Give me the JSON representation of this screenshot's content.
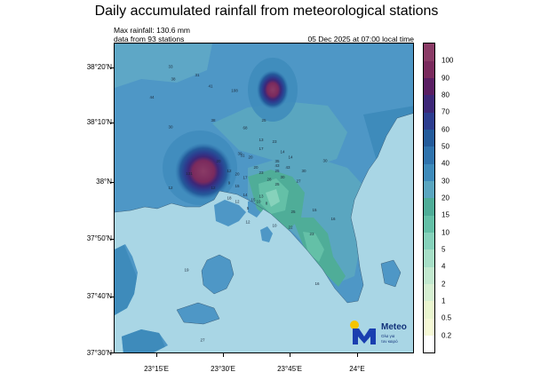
{
  "title": "Daily accumulated rainfall from meteorological stations",
  "max_rainfall": "Max rainfall: 130.6 mm",
  "station_count": "data from 93 stations",
  "timestamp": "05 Dec 2025 at 07:00 local time",
  "lat_labels": [
    "38°20'N",
    "38°10'N",
    "38°N",
    "37°50'N",
    "37°40'N",
    "37°30'N"
  ],
  "lon_labels": [
    "23°15'E",
    "23°30'E",
    "23°45'E",
    "24°E"
  ],
  "colorbar": {
    "levels": [
      "0.2",
      "0.5",
      "1",
      "2",
      "4",
      "5",
      "10",
      "15",
      "20",
      "30",
      "40",
      "50",
      "60",
      "70",
      "80",
      "90",
      "100"
    ],
    "colors": [
      "#ffffff",
      "#f6f9d6",
      "#eaf6cf",
      "#d6f0d2",
      "#c2e9cf",
      "#a7dfc7",
      "#86d2bb",
      "#64c0a7",
      "#4fad98",
      "#5aa6c0",
      "#3e8bbb",
      "#2f73ad",
      "#245b9b",
      "#2c3d8f",
      "#3d2778",
      "#5a1e63",
      "#7a2a5d",
      "#8a3b66"
    ]
  },
  "logo": {
    "brand": "Meteo",
    "tagline_1": "Ολα για",
    "tagline_2": "τον καιρό"
  },
  "colors": {
    "sea": "#a9d6e5",
    "land_base": "#4e97c6",
    "heavy": "#8a2b63"
  },
  "stations": [
    {
      "v": "33",
      "lon": 23.3,
      "lat": 38.335
    },
    {
      "v": "38",
      "lon": 23.31,
      "lat": 38.298
    },
    {
      "v": "44",
      "lon": 23.23,
      "lat": 38.245
    },
    {
      "v": "31",
      "lon": 23.4,
      "lat": 38.31
    },
    {
      "v": "41",
      "lon": 23.45,
      "lat": 38.277
    },
    {
      "v": "108",
      "lon": 23.54,
      "lat": 38.265
    },
    {
      "v": "30",
      "lon": 23.3,
      "lat": 38.158
    },
    {
      "v": "38",
      "lon": 23.46,
      "lat": 38.177
    },
    {
      "v": "68",
      "lon": 23.58,
      "lat": 38.156
    },
    {
      "v": "25",
      "lon": 23.65,
      "lat": 38.178
    },
    {
      "v": "131",
      "lon": 23.37,
      "lat": 38.022
    },
    {
      "v": "20",
      "lon": 23.48,
      "lat": 38.058
    },
    {
      "v": "12",
      "lon": 23.46,
      "lat": 37.98
    },
    {
      "v": "13",
      "lon": 23.64,
      "lat": 38.12
    },
    {
      "v": "23",
      "lon": 23.69,
      "lat": 38.115
    },
    {
      "v": "30",
      "lon": 23.56,
      "lat": 38.08
    },
    {
      "v": "31",
      "lon": 23.57,
      "lat": 38.075
    },
    {
      "v": "20",
      "lon": 23.6,
      "lat": 38.07
    },
    {
      "v": "14",
      "lon": 23.72,
      "lat": 38.085
    },
    {
      "v": "17",
      "lon": 23.64,
      "lat": 38.095
    },
    {
      "v": "14",
      "lon": 23.75,
      "lat": 38.07
    },
    {
      "v": "30",
      "lon": 23.88,
      "lat": 38.06
    },
    {
      "v": "35",
      "lon": 23.7,
      "lat": 38.058
    },
    {
      "v": "43",
      "lon": 23.7,
      "lat": 38.045
    },
    {
      "v": "43",
      "lon": 23.74,
      "lat": 38.04
    },
    {
      "v": "25",
      "lon": 23.7,
      "lat": 38.03
    },
    {
      "v": "20",
      "lon": 23.62,
      "lat": 38.04
    },
    {
      "v": "12",
      "lon": 23.52,
      "lat": 38.03
    },
    {
      "v": "20",
      "lon": 23.55,
      "lat": 38.02
    },
    {
      "v": "17",
      "lon": 23.58,
      "lat": 38.01
    },
    {
      "v": "23",
      "lon": 23.64,
      "lat": 38.025
    },
    {
      "v": "28",
      "lon": 23.67,
      "lat": 38.005
    },
    {
      "v": "30",
      "lon": 23.72,
      "lat": 38.012
    },
    {
      "v": "27",
      "lon": 23.78,
      "lat": 38.0
    },
    {
      "v": "30",
      "lon": 23.8,
      "lat": 38.03
    },
    {
      "v": "25",
      "lon": 23.7,
      "lat": 37.99
    },
    {
      "v": "15",
      "lon": 23.55,
      "lat": 37.985
    },
    {
      "v": "14",
      "lon": 23.58,
      "lat": 37.96
    },
    {
      "v": "9",
      "lon": 23.52,
      "lat": 37.995
    },
    {
      "v": "15",
      "lon": 23.61,
      "lat": 37.945
    },
    {
      "v": "10",
      "lon": 23.63,
      "lat": 37.94
    },
    {
      "v": "8",
      "lon": 23.66,
      "lat": 37.935
    },
    {
      "v": "13",
      "lon": 23.64,
      "lat": 37.955
    },
    {
      "v": "12",
      "lon": 23.55,
      "lat": 37.94
    },
    {
      "v": "18",
      "lon": 23.52,
      "lat": 37.95
    },
    {
      "v": "5",
      "lon": 23.59,
      "lat": 37.92
    },
    {
      "v": "25",
      "lon": 23.76,
      "lat": 37.91
    },
    {
      "v": "15",
      "lon": 23.84,
      "lat": 37.915
    },
    {
      "v": "22",
      "lon": 23.75,
      "lat": 37.865
    },
    {
      "v": "23",
      "lon": 23.83,
      "lat": 37.845
    },
    {
      "v": "16",
      "lon": 23.91,
      "lat": 37.89
    },
    {
      "v": "10",
      "lon": 23.69,
      "lat": 37.87
    },
    {
      "v": "12",
      "lon": 23.59,
      "lat": 37.88
    },
    {
      "v": "19",
      "lon": 23.36,
      "lat": 37.74
    },
    {
      "v": "16",
      "lon": 23.85,
      "lat": 37.7
    },
    {
      "v": "27",
      "lon": 23.42,
      "lat": 37.535
    },
    {
      "v": "12",
      "lon": 23.3,
      "lat": 37.98
    }
  ]
}
